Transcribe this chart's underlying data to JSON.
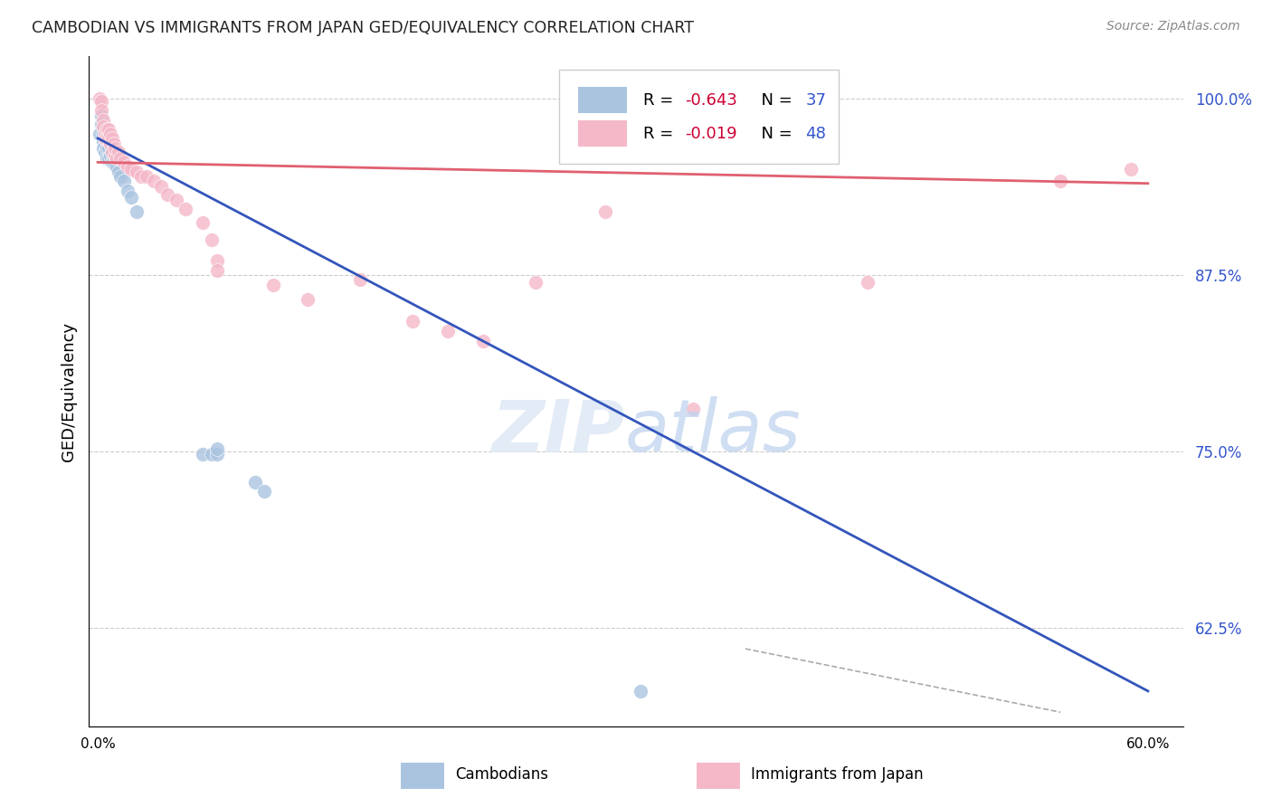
{
  "title": "CAMBODIAN VS IMMIGRANTS FROM JAPAN GED/EQUIVALENCY CORRELATION CHART",
  "source": "Source: ZipAtlas.com",
  "ylabel": "GED/Equivalency",
  "ylim": [
    0.555,
    1.03
  ],
  "xlim": [
    -0.005,
    0.62
  ],
  "blue_color": "#aac4e0",
  "pink_color": "#f4b8c8",
  "blue_line_color": "#3355bb",
  "pink_line_color": "#e06070",
  "blue_line_x": [
    0.0,
    0.6
  ],
  "blue_line_y": [
    0.972,
    0.58
  ],
  "pink_line_x": [
    0.0,
    0.6
  ],
  "pink_line_y": [
    0.955,
    0.94
  ],
  "blue_scatter_x": [
    0.001,
    0.002,
    0.002,
    0.003,
    0.003,
    0.003,
    0.004,
    0.004,
    0.004,
    0.005,
    0.005,
    0.005,
    0.005,
    0.006,
    0.006,
    0.006,
    0.007,
    0.007,
    0.008,
    0.008,
    0.009,
    0.01,
    0.01,
    0.011,
    0.012,
    0.013,
    0.015,
    0.017,
    0.019,
    0.022,
    0.06,
    0.065,
    0.068,
    0.068,
    0.09,
    0.095,
    0.31
  ],
  "blue_scatter_y": [
    0.975,
    0.988,
    0.982,
    0.975,
    0.97,
    0.965,
    0.978,
    0.972,
    0.962,
    0.978,
    0.972,
    0.965,
    0.958,
    0.972,
    0.965,
    0.958,
    0.968,
    0.96,
    0.962,
    0.955,
    0.958,
    0.953,
    0.96,
    0.952,
    0.948,
    0.945,
    0.942,
    0.935,
    0.93,
    0.92,
    0.748,
    0.748,
    0.748,
    0.752,
    0.728,
    0.722,
    0.58
  ],
  "pink_scatter_x": [
    0.001,
    0.002,
    0.002,
    0.003,
    0.003,
    0.004,
    0.004,
    0.005,
    0.005,
    0.006,
    0.006,
    0.007,
    0.007,
    0.008,
    0.008,
    0.009,
    0.01,
    0.01,
    0.011,
    0.012,
    0.013,
    0.015,
    0.017,
    0.019,
    0.022,
    0.025,
    0.028,
    0.032,
    0.036,
    0.04,
    0.045,
    0.05,
    0.06,
    0.065,
    0.068,
    0.068,
    0.1,
    0.12,
    0.15,
    0.18,
    0.2,
    0.22,
    0.25,
    0.29,
    0.34,
    0.44,
    0.55,
    0.59
  ],
  "pink_scatter_y": [
    1.0,
    0.998,
    0.992,
    0.985,
    0.98,
    0.975,
    0.972,
    0.978,
    0.972,
    0.978,
    0.972,
    0.975,
    0.968,
    0.972,
    0.962,
    0.968,
    0.96,
    0.965,
    0.958,
    0.962,
    0.958,
    0.955,
    0.952,
    0.95,
    0.948,
    0.945,
    0.945,
    0.942,
    0.938,
    0.932,
    0.928,
    0.922,
    0.912,
    0.9,
    0.885,
    0.878,
    0.868,
    0.858,
    0.872,
    0.842,
    0.835,
    0.828,
    0.87,
    0.92,
    0.78,
    0.87,
    0.942,
    0.95
  ],
  "ytick_values": [
    1.0,
    0.875,
    0.75,
    0.625
  ],
  "ytick_labels": [
    "100.0%",
    "87.5%",
    "75.0%",
    "62.5%"
  ],
  "grid_values": [
    1.0,
    0.875,
    0.75,
    0.625
  ],
  "dashed_line_x": [
    0.37,
    0.55
  ],
  "dashed_line_y": [
    0.61,
    0.565
  ]
}
